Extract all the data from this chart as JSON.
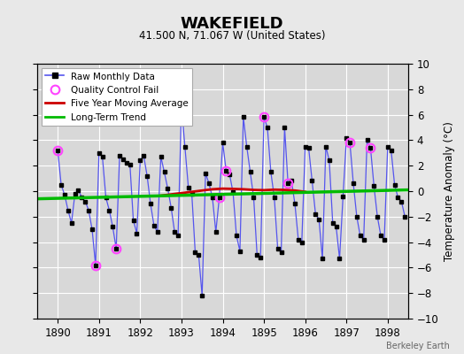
{
  "title": "WAKEFIELD",
  "subtitle": "41.500 N, 71.067 W (United States)",
  "ylabel": "Temperature Anomaly (°C)",
  "watermark": "Berkeley Earth",
  "xlim": [
    1889.5,
    1898.5
  ],
  "ylim": [
    -10,
    10
  ],
  "xticks": [
    1890,
    1891,
    1892,
    1893,
    1894,
    1895,
    1896,
    1897,
    1898
  ],
  "yticks": [
    -10,
    -8,
    -6,
    -4,
    -2,
    0,
    2,
    4,
    6,
    8,
    10
  ],
  "bg_color": "#e8e8e8",
  "plot_bg_color": "#d8d8d8",
  "grid_color": "#ffffff",
  "raw_color": "#5555ee",
  "raw_marker_color": "#000000",
  "qc_color": "#ff44ff",
  "moving_avg_color": "#cc0000",
  "trend_color": "#00bb00",
  "raw_data": [
    1890.0,
    3.2,
    1890.083,
    0.5,
    1890.167,
    -0.3,
    1890.25,
    -1.5,
    1890.333,
    -2.5,
    1890.417,
    -0.2,
    1890.5,
    0.1,
    1890.583,
    -0.5,
    1890.667,
    -0.8,
    1890.75,
    -1.5,
    1890.833,
    -3.0,
    1890.917,
    -5.8,
    1891.0,
    3.0,
    1891.083,
    2.7,
    1891.167,
    -0.5,
    1891.25,
    -1.5,
    1891.333,
    -2.8,
    1891.417,
    -4.5,
    1891.5,
    2.8,
    1891.583,
    2.5,
    1891.667,
    2.2,
    1891.75,
    2.1,
    1891.833,
    -2.3,
    1891.917,
    -3.3,
    1892.0,
    2.4,
    1892.083,
    2.8,
    1892.167,
    1.2,
    1892.25,
    -1.0,
    1892.333,
    -2.7,
    1892.417,
    -3.2,
    1892.5,
    2.7,
    1892.583,
    1.5,
    1892.667,
    0.2,
    1892.75,
    -1.3,
    1892.833,
    -3.2,
    1892.917,
    -3.5,
    1893.0,
    6.7,
    1893.083,
    3.5,
    1893.167,
    0.3,
    1893.25,
    -0.2,
    1893.333,
    -4.8,
    1893.417,
    -5.0,
    1893.5,
    -8.2,
    1893.583,
    1.4,
    1893.667,
    0.6,
    1893.75,
    -0.5,
    1893.833,
    -3.2,
    1893.917,
    -0.5,
    1894.0,
    3.8,
    1894.083,
    1.6,
    1894.167,
    1.3,
    1894.25,
    -0.1,
    1894.333,
    -3.5,
    1894.417,
    -4.7,
    1894.5,
    5.8,
    1894.583,
    3.5,
    1894.667,
    1.5,
    1894.75,
    -0.5,
    1894.833,
    -5.0,
    1894.917,
    -5.2,
    1895.0,
    5.8,
    1895.083,
    5.0,
    1895.167,
    1.5,
    1895.25,
    -0.5,
    1895.333,
    -4.5,
    1895.417,
    -4.8,
    1895.5,
    5.0,
    1895.583,
    0.6,
    1895.667,
    0.8,
    1895.75,
    -1.0,
    1895.833,
    -3.8,
    1895.917,
    -4.0,
    1896.0,
    3.5,
    1896.083,
    3.4,
    1896.167,
    0.8,
    1896.25,
    -1.8,
    1896.333,
    -2.2,
    1896.417,
    -5.3,
    1896.5,
    3.5,
    1896.583,
    2.4,
    1896.667,
    -2.5,
    1896.75,
    -2.8,
    1896.833,
    -5.3,
    1896.917,
    -0.4,
    1897.0,
    4.2,
    1897.083,
    3.8,
    1897.167,
    0.6,
    1897.25,
    -2.0,
    1897.333,
    -3.5,
    1897.417,
    -3.8,
    1897.5,
    4.0,
    1897.583,
    3.4,
    1897.667,
    0.4,
    1897.75,
    -2.0,
    1897.833,
    -3.5,
    1897.917,
    -3.8,
    1898.0,
    3.5,
    1898.083,
    3.2,
    1898.167,
    0.5,
    1898.25,
    -0.5,
    1898.333,
    -0.8,
    1898.417,
    -2.0
  ],
  "qc_fail_points": [
    [
      1890.0,
      3.2
    ],
    [
      1890.917,
      -5.8
    ],
    [
      1891.417,
      -4.5
    ],
    [
      1893.917,
      -0.5
    ],
    [
      1894.083,
      1.6
    ],
    [
      1895.0,
      5.8
    ],
    [
      1895.583,
      0.6
    ],
    [
      1897.083,
      3.8
    ],
    [
      1897.583,
      3.4
    ]
  ],
  "moving_avg_x": [
    1892.5,
    1892.75,
    1893.0,
    1893.25,
    1893.5,
    1893.75,
    1894.0,
    1894.25,
    1894.5,
    1894.75,
    1895.0,
    1895.25,
    1895.5,
    1895.75,
    1896.0
  ],
  "moving_avg_y": [
    -0.35,
    -0.25,
    -0.15,
    -0.05,
    0.05,
    0.15,
    0.2,
    0.18,
    0.15,
    0.1,
    0.08,
    0.12,
    0.1,
    0.05,
    -0.05
  ],
  "trend_x": [
    1889.5,
    1898.5
  ],
  "trend_y": [
    -0.6,
    0.1
  ]
}
